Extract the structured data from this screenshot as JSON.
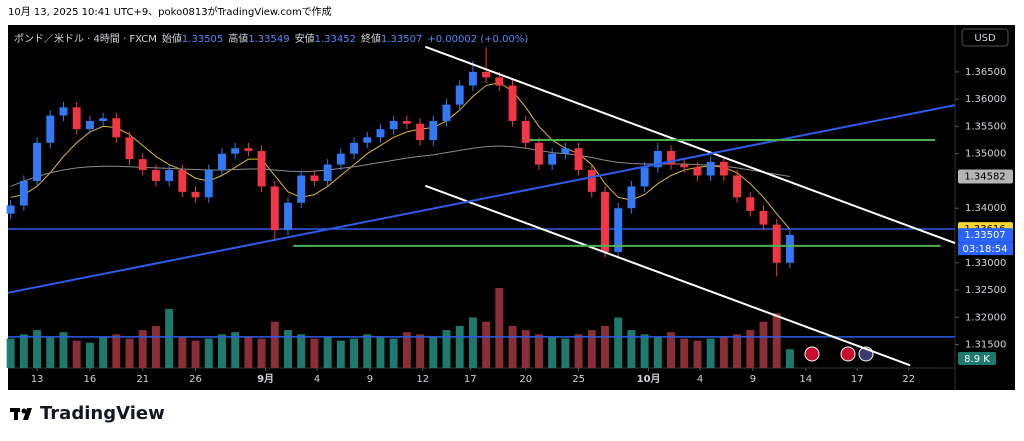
{
  "header": {
    "caption": "10月 13, 2025 10:41 UTC+9、poko0813がTradingView.comで作成"
  },
  "chart_data": {
    "type": "candlestick",
    "symbol": "ポンド／米ドル · 4時間 · FXCM",
    "ohlc_legend": [
      {
        "name": "始値",
        "value": "1.33505"
      },
      {
        "name": "高値",
        "value": "1.33549"
      },
      {
        "name": "安値",
        "value": "1.33452"
      },
      {
        "name": "終値",
        "value": "1.33507"
      }
    ],
    "change": "+0.00002 (+0.00%)",
    "currency": "USD",
    "countdown": "03:18:54",
    "volume_last_label": "8.9 K",
    "up_color": "#3179f5",
    "down_color": "#f23645",
    "volume_up_color": "#1e7a6d",
    "volume_down_color": "#8a2f36",
    "xlim": [
      -2.2,
      69.5
    ],
    "ylim": [
      1.3107,
      1.3736
    ],
    "xticks": [
      {
        "value": 0,
        "label": "13"
      },
      {
        "value": 4,
        "label": "16"
      },
      {
        "value": 8,
        "label": "21"
      },
      {
        "value": 12,
        "label": "26"
      },
      {
        "value": 17.3,
        "label": "9月"
      },
      {
        "value": 21.2,
        "label": "4"
      },
      {
        "value": 25.2,
        "label": "9"
      },
      {
        "value": 29.2,
        "label": "12"
      },
      {
        "value": 32.8,
        "label": "17"
      },
      {
        "value": 37,
        "label": "20"
      },
      {
        "value": 41,
        "label": "25"
      },
      {
        "value": 46.3,
        "label": "10月"
      },
      {
        "value": 50.2,
        "label": "4"
      },
      {
        "value": 54.2,
        "label": "9"
      },
      {
        "value": 58.2,
        "label": "14"
      },
      {
        "value": 62.1,
        "label": "17"
      },
      {
        "value": 66,
        "label": "22"
      }
    ],
    "yticks": [
      {
        "value": 1.315,
        "label": "1.31500"
      },
      {
        "value": 1.32,
        "label": "1.32000"
      },
      {
        "value": 1.325,
        "label": "1.32500"
      },
      {
        "value": 1.33,
        "label": "1.33000"
      },
      {
        "value": 1.34,
        "label": "1.34000"
      },
      {
        "value": 1.35,
        "label": "1.35000"
      },
      {
        "value": 1.355,
        "label": "1.35500"
      },
      {
        "value": 1.36,
        "label": "1.36000"
      },
      {
        "value": 1.365,
        "label": "1.36500"
      }
    ],
    "x": [
      -2,
      -1,
      0,
      1,
      2,
      3,
      4,
      5,
      6,
      7,
      8,
      9,
      10,
      11,
      12,
      13,
      14,
      15,
      16,
      17,
      18,
      19,
      20,
      21,
      22,
      23,
      24,
      25,
      26,
      27,
      28,
      29,
      30,
      31,
      32,
      33,
      34,
      35,
      36,
      37,
      38,
      39,
      40,
      41,
      42,
      43,
      44,
      45,
      46,
      47,
      48,
      49,
      50,
      51,
      52,
      53,
      54,
      55,
      56,
      57
    ],
    "open": [
      1.339,
      1.3405,
      1.345,
      1.352,
      1.357,
      1.3585,
      1.3545,
      1.356,
      1.3565,
      1.353,
      1.349,
      1.347,
      1.345,
      1.347,
      1.343,
      1.342,
      1.347,
      1.35,
      1.351,
      1.3505,
      1.344,
      1.336,
      1.341,
      1.346,
      1.345,
      1.348,
      1.35,
      1.352,
      1.353,
      1.3545,
      1.356,
      1.3555,
      1.3525,
      1.356,
      1.359,
      1.3625,
      1.365,
      1.364,
      1.3625,
      1.356,
      1.352,
      1.348,
      1.35,
      1.351,
      1.347,
      1.343,
      1.332,
      1.34,
      1.344,
      1.3475,
      1.3505,
      1.348,
      1.3475,
      1.346,
      1.3485,
      1.346,
      1.342,
      1.3395,
      1.337,
      1.33
    ],
    "high": [
      1.3415,
      1.346,
      1.353,
      1.358,
      1.3595,
      1.3595,
      1.357,
      1.3575,
      1.3575,
      1.354,
      1.35,
      1.348,
      1.348,
      1.348,
      1.344,
      1.348,
      1.351,
      1.352,
      1.352,
      1.3515,
      1.345,
      1.342,
      1.347,
      1.347,
      1.349,
      1.351,
      1.353,
      1.354,
      1.3555,
      1.357,
      1.357,
      1.3565,
      1.357,
      1.36,
      1.3635,
      1.367,
      1.3695,
      1.365,
      1.3635,
      1.357,
      1.353,
      1.351,
      1.352,
      1.352,
      1.348,
      1.344,
      1.341,
      1.345,
      1.3485,
      1.352,
      1.3515,
      1.349,
      1.3485,
      1.3495,
      1.3495,
      1.347,
      1.343,
      1.3405,
      1.338,
      1.336
    ],
    "low": [
      1.338,
      1.3395,
      1.344,
      1.351,
      1.356,
      1.3535,
      1.3535,
      1.355,
      1.352,
      1.348,
      1.346,
      1.344,
      1.344,
      1.342,
      1.341,
      1.341,
      1.346,
      1.349,
      1.3495,
      1.343,
      1.334,
      1.335,
      1.34,
      1.344,
      1.344,
      1.347,
      1.349,
      1.351,
      1.352,
      1.3535,
      1.3545,
      1.3515,
      1.3515,
      1.355,
      1.358,
      1.3615,
      1.363,
      1.3615,
      1.355,
      1.351,
      1.347,
      1.347,
      1.349,
      1.346,
      1.342,
      1.331,
      1.331,
      1.339,
      1.343,
      1.3465,
      1.347,
      1.3465,
      1.345,
      1.345,
      1.345,
      1.341,
      1.3385,
      1.336,
      1.3275,
      1.329
    ],
    "close": [
      1.3405,
      1.345,
      1.352,
      1.357,
      1.3585,
      1.3545,
      1.356,
      1.3565,
      1.353,
      1.349,
      1.347,
      1.345,
      1.347,
      1.343,
      1.342,
      1.347,
      1.35,
      1.351,
      1.3505,
      1.344,
      1.336,
      1.341,
      1.346,
      1.345,
      1.348,
      1.35,
      1.352,
      1.353,
      1.3545,
      1.356,
      1.3555,
      1.3525,
      1.356,
      1.359,
      1.3625,
      1.365,
      1.364,
      1.3625,
      1.356,
      1.352,
      1.348,
      1.35,
      1.351,
      1.347,
      1.343,
      1.332,
      1.34,
      1.344,
      1.3475,
      1.3505,
      1.348,
      1.3475,
      1.346,
      1.3485,
      1.346,
      1.342,
      1.3395,
      1.337,
      1.33,
      1.3351
    ],
    "volume": [
      14,
      16,
      18,
      15,
      17,
      13,
      12,
      15,
      16,
      14,
      18,
      20,
      28,
      15,
      13,
      14,
      16,
      17,
      15,
      14,
      22,
      18,
      16,
      14,
      15,
      13,
      14,
      16,
      15,
      14,
      17,
      16,
      15,
      18,
      20,
      24,
      22,
      38,
      20,
      18,
      16,
      15,
      14,
      16,
      18,
      20,
      24,
      18,
      16,
      15,
      17,
      14,
      13,
      14,
      15,
      16,
      18,
      22,
      26,
      8.9
    ],
    "moving_averages": [
      {
        "color": "#e0b92a",
        "values": [
          1.342,
          1.3425,
          1.344,
          1.3465,
          1.3495,
          1.352,
          1.354,
          1.355,
          1.3548,
          1.3535,
          1.3515,
          1.3495,
          1.348,
          1.347,
          1.3455,
          1.345,
          1.346,
          1.3475,
          1.349,
          1.349,
          1.346,
          1.343,
          1.342,
          1.3425,
          1.344,
          1.346,
          1.348,
          1.35,
          1.3515,
          1.353,
          1.354,
          1.3545,
          1.3548,
          1.356,
          1.358,
          1.3605,
          1.3625,
          1.363,
          1.3615,
          1.3585,
          1.355,
          1.3525,
          1.351,
          1.35,
          1.348,
          1.3445,
          1.342,
          1.3415,
          1.3425,
          1.3445,
          1.346,
          1.347,
          1.3475,
          1.3478,
          1.3475,
          1.3465,
          1.3445,
          1.342,
          1.339,
          1.33616
        ]
      },
      {
        "color": "#8c8c8c",
        "values": [
          1.344,
          1.345,
          1.3458,
          1.3465,
          1.347,
          1.3474,
          1.3476,
          1.3477,
          1.3477,
          1.3476,
          1.3475,
          1.3474,
          1.3473,
          1.3472,
          1.3471,
          1.347,
          1.347,
          1.3471,
          1.3472,
          1.3472,
          1.347,
          1.3468,
          1.3467,
          1.3468,
          1.347,
          1.3473,
          1.3476,
          1.348,
          1.3484,
          1.3488,
          1.3492,
          1.3495,
          1.3498,
          1.3502,
          1.3506,
          1.351,
          1.3513,
          1.3514,
          1.3513,
          1.351,
          1.3506,
          1.3502,
          1.35,
          1.3497,
          1.3493,
          1.3488,
          1.3484,
          1.3482,
          1.3481,
          1.3481,
          1.3481,
          1.3481,
          1.348,
          1.3479,
          1.3477,
          1.3474,
          1.347,
          1.3466,
          1.3462,
          1.34582
        ]
      }
    ],
    "lines": [
      {
        "color": "#ffffff",
        "x": [
          29.4,
          69.5
        ],
        "y": [
          1.3696,
          1.3336
        ]
      },
      {
        "color": "#ffffff",
        "x": [
          29.4,
          66.1
        ],
        "y": [
          1.3441,
          1.3112
        ]
      },
      {
        "color": "#2f5bea",
        "x": [
          -2.2,
          69.5
        ],
        "y": [
          1.3245,
          1.3589
        ]
      },
      {
        "color": "#4caf50",
        "x": [
          37.3,
          68.0
        ],
        "y": [
          1.3525,
          1.3525
        ]
      },
      {
        "color": "#4caf50",
        "x": [
          19.4,
          68.4
        ],
        "y": [
          1.3331,
          1.3331
        ]
      }
    ],
    "hlines": [
      {
        "color": "#2f5bea",
        "y": 1.3362
      },
      {
        "color": "#2f5bea",
        "y": 1.3164
      }
    ],
    "price_labels": [
      {
        "value": 1.34582,
        "color": "#b5b5b5"
      },
      {
        "value": 1.33616,
        "color": "#f7d633"
      },
      {
        "value": 1.33507,
        "color": "#2962ff"
      }
    ]
  },
  "footer": {
    "logo": "TradingView"
  }
}
